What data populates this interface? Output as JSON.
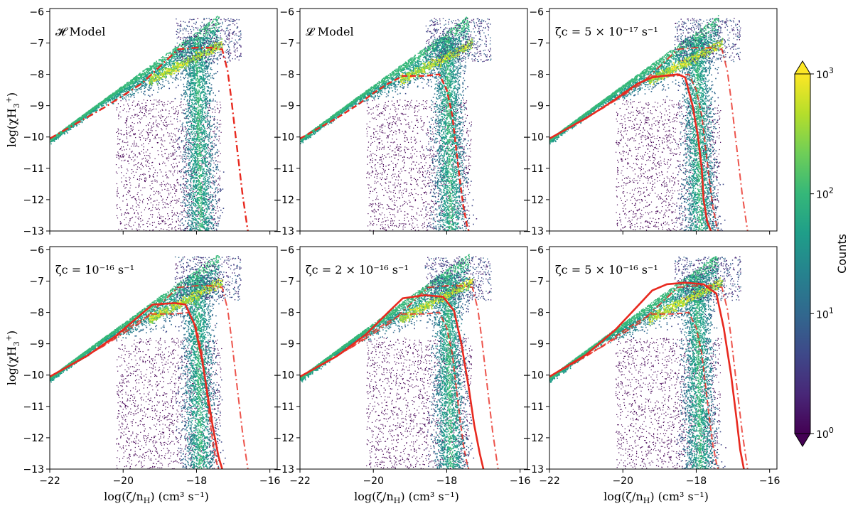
{
  "chart_data": {
    "type": "heatmap",
    "figure": "2x3 grid of 2D histograms with model curves",
    "xlabel": "log(ζ/n",
    "xlabel_sub": "H",
    "xlabel_units": ") (cm³ s⁻¹)",
    "ylabel": "log(χH",
    "ylabel_sub": "3",
    "ylabel_sup": "+",
    "ylabel_close": ")",
    "xlim": [
      -22,
      -15.8
    ],
    "ylim": [
      -13,
      -5.9
    ],
    "xticks": [
      -22,
      -20,
      -18,
      -16
    ],
    "xtick_labels": [
      "−22",
      "−20",
      "−18",
      "−16"
    ],
    "yticks": [
      -13,
      -12,
      -11,
      -10,
      -9,
      -8,
      -7,
      -6
    ],
    "ytick_labels": [
      "−13",
      "−12",
      "−11",
      "−10",
      "−9",
      "−8",
      "−7",
      "−6"
    ],
    "colorbar": {
      "label": "Counts",
      "scale": "log",
      "cmap": "viridis",
      "range": [
        1,
        1000
      ],
      "tick_labels": [
        {
          "base": "10",
          "exp": "0"
        },
        {
          "base": "10",
          "exp": "1"
        },
        {
          "base": "10",
          "exp": "2"
        },
        {
          "base": "10",
          "exp": "3"
        }
      ],
      "colors": [
        "#440154",
        "#482878",
        "#3e4989",
        "#31688e",
        "#26828e",
        "#1f9e89",
        "#35b779",
        "#6ece58",
        "#b5de2b",
        "#fde725"
      ]
    },
    "reference_curves": {
      "H_model": {
        "style": "dashdot",
        "color": "#e8291f",
        "x": [
          -22,
          -20.5,
          -19.5,
          -19,
          -18.5,
          -18,
          -17.6,
          -17.3,
          -17.15,
          -17.05,
          -16.95,
          -16.85,
          -16.75,
          -16.65,
          -16.6
        ],
        "y": [
          -10.05,
          -9.05,
          -8.3,
          -7.75,
          -7.2,
          -7.15,
          -7.15,
          -7.2,
          -7.9,
          -8.8,
          -9.8,
          -10.8,
          -11.8,
          -12.6,
          -13
        ]
      },
      "L_model": {
        "style": "dashed",
        "color": "#e8291f",
        "x": [
          -22,
          -21,
          -20.4,
          -20,
          -19.6,
          -19.2,
          -18.6,
          -18.2,
          -18.0,
          -17.85,
          -17.75,
          -17.65,
          -17.55,
          -17.45,
          -17.4
        ],
        "y": [
          -10.05,
          -9.4,
          -8.95,
          -8.6,
          -8.3,
          -8.05,
          -8.05,
          -8.0,
          -8.5,
          -9.3,
          -10.3,
          -11.3,
          -12.2,
          -12.8,
          -13
        ]
      }
    },
    "panels": [
      {
        "label": "𝓗 Model",
        "ion_curve": null
      },
      {
        "label": "𝓛 Model",
        "ion_curve": null
      },
      {
        "label": "ζc = 5 × 10⁻¹⁷ s⁻¹",
        "ion_curve": {
          "x": [
            -22,
            -21,
            -20.2,
            -19.6,
            -19.2,
            -18.9,
            -18.5,
            -18.3,
            -18.1,
            -17.95,
            -17.85,
            -17.8,
            -17.7,
            -17.6
          ],
          "y": [
            -10.05,
            -9.4,
            -8.8,
            -8.3,
            -8.1,
            -8.05,
            -8.0,
            -8.1,
            -9.0,
            -10.0,
            -11.0,
            -12.0,
            -12.7,
            -13
          ]
        }
      },
      {
        "label": "ζc = 10⁻¹⁶ s⁻¹",
        "ion_curve": {
          "x": [
            -22,
            -21,
            -20.2,
            -19.6,
            -19.2,
            -18.6,
            -18.3,
            -18.05,
            -17.85,
            -17.7,
            -17.55,
            -17.4,
            -17.3
          ],
          "y": [
            -10.05,
            -9.4,
            -8.75,
            -8.15,
            -7.75,
            -7.7,
            -7.75,
            -8.4,
            -9.5,
            -10.6,
            -11.7,
            -12.6,
            -13
          ]
        }
      },
      {
        "label": "ζc = 2 × 10⁻¹⁶ s⁻¹",
        "ion_curve": {
          "x": [
            -22,
            -21,
            -20.2,
            -19.6,
            -19.2,
            -18.6,
            -18.1,
            -17.8,
            -17.6,
            -17.4,
            -17.25,
            -17.1,
            -17.0
          ],
          "y": [
            -10.05,
            -9.4,
            -8.7,
            -8.0,
            -7.55,
            -7.45,
            -7.5,
            -7.95,
            -9.0,
            -10.4,
            -11.6,
            -12.5,
            -13
          ]
        }
      },
      {
        "label": "ζc = 5 × 10⁻¹⁶ s⁻¹",
        "ion_curve": {
          "x": [
            -22,
            -21,
            -20.2,
            -19.6,
            -19.2,
            -18.8,
            -18.3,
            -17.8,
            -17.45,
            -17.25,
            -17.05,
            -16.9,
            -16.8,
            -16.7
          ],
          "y": [
            -10.05,
            -9.35,
            -8.55,
            -7.8,
            -7.3,
            -7.1,
            -7.05,
            -7.1,
            -7.4,
            -8.5,
            -10.0,
            -11.4,
            -12.4,
            -13
          ]
        }
      }
    ]
  }
}
